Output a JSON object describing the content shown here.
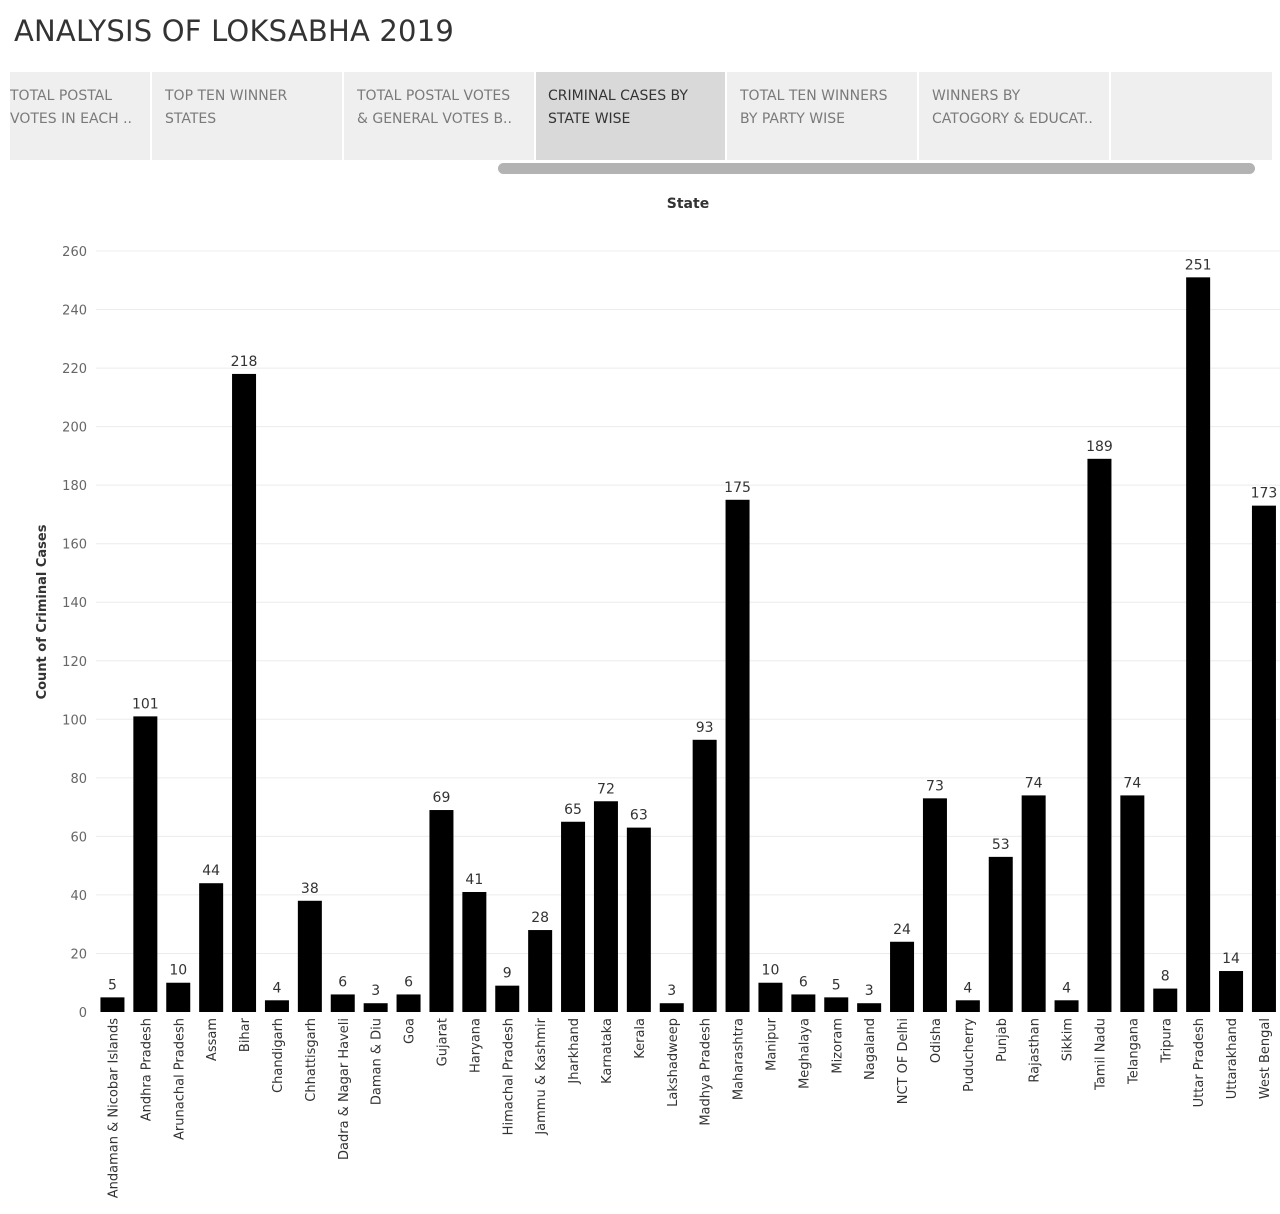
{
  "page": {
    "title": "ANALYSIS OF LOKSABHA 2019"
  },
  "tabs": [
    {
      "line1": "TOTAL POSTAL",
      "line2": "VOTES IN EACH ..",
      "active": false
    },
    {
      "line1": "TOP  TEN WINNER",
      "line2": "STATES",
      "active": false
    },
    {
      "line1": "TOTAL POSTAL VOTES",
      "line2": "& GENERAL VOTES  B..",
      "active": false
    },
    {
      "line1": "CRIMINAL CASES BY",
      "line2": "STATE WISE",
      "active": true
    },
    {
      "line1": "TOTAL TEN WINNERS",
      "line2": "BY PARTY WISE",
      "active": false
    },
    {
      "line1": "WINNERS BY",
      "line2": "CATOGORY & EDUCAT..",
      "active": false
    },
    {
      "line1": "",
      "line2": "",
      "active": false
    }
  ],
  "colors": {
    "bar": "#000000",
    "tab_bg": "#efefef",
    "tab_active_bg": "#d9d9d9",
    "gridline": "#ececec"
  },
  "chart_data": {
    "type": "bar",
    "title": "",
    "column_header": "State",
    "xlabel": "",
    "ylabel": "Count of Criminal Cases",
    "ylim": [
      0,
      260
    ],
    "yticks": [
      0,
      20,
      40,
      60,
      80,
      100,
      120,
      140,
      160,
      180,
      200,
      220,
      240,
      260
    ],
    "grid": true,
    "categories": [
      "Andaman & Nicobar Islands",
      "Andhra Pradesh",
      "Arunachal Pradesh",
      "Assam",
      "Bihar",
      "Chandigarh",
      "Chhattisgarh",
      "Dadra & Nagar Haveli",
      "Daman & Diu",
      "Goa",
      "Gujarat",
      "Haryana",
      "Himachal Pradesh",
      "Jammu & Kashmir",
      "Jharkhand",
      "Karnataka",
      "Kerala",
      "Lakshadweep",
      "Madhya Pradesh",
      "Maharashtra",
      "Manipur",
      "Meghalaya",
      "Mizoram",
      "Nagaland",
      "NCT OF Delhi",
      "Odisha",
      "Puducherry",
      "Punjab",
      "Rajasthan",
      "Sikkim",
      "Tamil Nadu",
      "Telangana",
      "Tripura",
      "Uttar Pradesh",
      "Uttarakhand",
      "West Bengal"
    ],
    "values": [
      5,
      101,
      10,
      44,
      218,
      4,
      38,
      6,
      3,
      6,
      69,
      41,
      9,
      28,
      65,
      72,
      63,
      3,
      93,
      175,
      10,
      6,
      5,
      3,
      24,
      73,
      4,
      53,
      74,
      4,
      189,
      74,
      8,
      251,
      14,
      173
    ]
  }
}
